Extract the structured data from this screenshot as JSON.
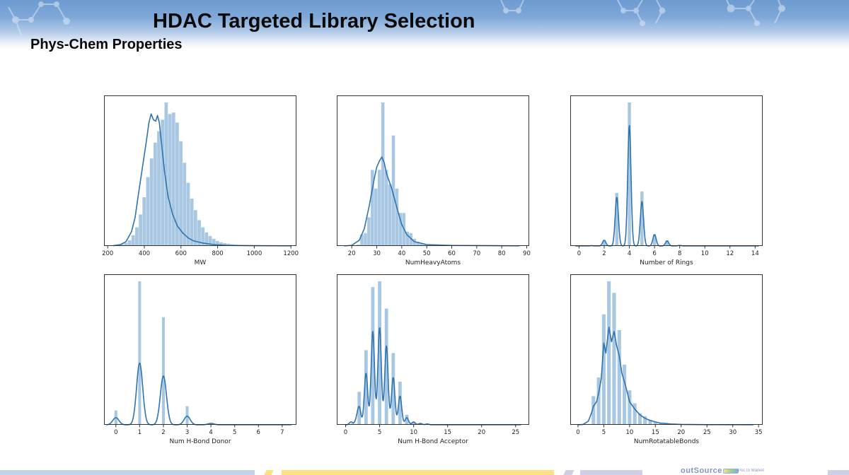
{
  "slide": {
    "title": "HDAC Targeted Library Selection",
    "subtitle": "Phys-Chem Properties",
    "footer_brand": "outSource",
    "footer_tagline": "Poc to Market"
  },
  "colors": {
    "bar_fill": "#a7c7e2",
    "kde_line": "#2f73b0",
    "frame": "#333333",
    "header_top": "#6d9bd0",
    "footer_blue": "#c2d4ea",
    "footer_yellow": "#fde084",
    "footer_lavender": "#cfcfe6"
  },
  "chart_data": [
    {
      "type": "bar",
      "subtype": "histogram+kde",
      "xlabel": "MW",
      "ylabel": "",
      "xlim": [
        180,
        1230
      ],
      "xticks": [
        200,
        400,
        600,
        800,
        1000,
        1200
      ],
      "bins": {
        "start": 230,
        "width": 20,
        "heights": [
          0.3,
          0.6,
          1.2,
          2.2,
          4.0,
          7.5,
          13,
          22,
          34,
          48,
          61,
          72,
          80,
          88,
          100,
          92,
          93,
          86,
          73,
          58,
          44,
          33,
          25,
          18,
          13,
          9.5,
          7,
          5,
          3.5,
          2.5,
          2,
          1.6,
          1.2,
          0.9,
          0.7,
          0.5,
          0.4,
          0.3,
          0.25,
          0.2,
          0.18,
          0.15,
          0.12,
          0.1,
          0.1,
          0.08,
          0.08,
          0.06,
          0.05
        ]
      },
      "kde": [
        [
          230,
          0.2
        ],
        [
          270,
          1
        ],
        [
          300,
          3
        ],
        [
          330,
          10
        ],
        [
          350,
          20
        ],
        [
          370,
          38
        ],
        [
          390,
          55
        ],
        [
          410,
          72
        ],
        [
          425,
          86
        ],
        [
          437,
          92
        ],
        [
          450,
          88
        ],
        [
          462,
          87
        ],
        [
          472,
          91
        ],
        [
          482,
          86
        ],
        [
          495,
          70
        ],
        [
          510,
          52
        ],
        [
          530,
          34
        ],
        [
          555,
          22
        ],
        [
          580,
          14
        ],
        [
          610,
          9
        ],
        [
          640,
          5.5
        ],
        [
          670,
          3.5
        ],
        [
          720,
          2
        ],
        [
          780,
          1
        ],
        [
          850,
          0.4
        ],
        [
          1000,
          0.2
        ],
        [
          1200,
          0.1
        ]
      ],
      "ymax": 100
    },
    {
      "type": "bar",
      "subtype": "histogram+kde",
      "xlabel": "NumHeavyAtoms",
      "ylabel": "",
      "xlim": [
        14,
        91
      ],
      "xticks": [
        20,
        30,
        40,
        50,
        60,
        70,
        80,
        90
      ],
      "bins": {
        "start": 22,
        "width": 1.4,
        "heights": [
          1,
          8,
          9,
          20,
          53,
          40,
          53,
          100,
          53,
          43,
          77,
          40,
          23,
          23,
          10,
          9,
          5,
          3,
          1.5,
          1,
          0.8,
          0.5,
          0.4,
          0.3,
          0.3,
          0.2,
          0.2,
          0.15,
          0.1,
          0.1
        ]
      },
      "kde": [
        [
          17,
          0
        ],
        [
          20,
          0.5
        ],
        [
          23,
          4
        ],
        [
          25,
          12
        ],
        [
          27,
          28
        ],
        [
          29,
          47
        ],
        [
          30,
          55
        ],
        [
          31,
          59
        ],
        [
          32,
          62
        ],
        [
          33,
          58
        ],
        [
          34,
          50
        ],
        [
          36,
          40
        ],
        [
          38,
          27
        ],
        [
          40,
          15
        ],
        [
          42,
          8
        ],
        [
          45,
          3
        ],
        [
          50,
          1
        ],
        [
          60,
          0.4
        ],
        [
          87,
          0.1
        ]
      ],
      "ymax": 100
    },
    {
      "type": "bar",
      "subtype": "histogram+kde",
      "xlabel": "Number of Rings",
      "ylabel": "",
      "xlim": [
        -0.7,
        14.6
      ],
      "xticks": [
        0,
        2,
        4,
        6,
        8,
        10,
        12,
        14
      ],
      "bars": [
        [
          1,
          0.3
        ],
        [
          2,
          4
        ],
        [
          3,
          37
        ],
        [
          4,
          100
        ],
        [
          5,
          38
        ],
        [
          6,
          8
        ],
        [
          7,
          4
        ],
        [
          8,
          0.5
        ]
      ],
      "bar_width": 0.25,
      "kde_peaks": [
        [
          1,
          0.2
        ],
        [
          2,
          4
        ],
        [
          3,
          34
        ],
        [
          4,
          84
        ],
        [
          5,
          31
        ],
        [
          6,
          8
        ],
        [
          7,
          3.5
        ],
        [
          8,
          0.4
        ]
      ],
      "kde_sigma": 0.13,
      "kde_range": [
        -0.3,
        14.3
      ],
      "ymax": 100
    },
    {
      "type": "bar",
      "subtype": "histogram+kde",
      "xlabel": "Num H-Bond Donor",
      "ylabel": "",
      "xlim": [
        -0.5,
        7.6
      ],
      "xticks": [
        0,
        1,
        2,
        3,
        4,
        5,
        6,
        7
      ],
      "bars": [
        [
          0,
          10
        ],
        [
          1,
          100
        ],
        [
          2,
          75
        ],
        [
          3,
          13
        ],
        [
          4,
          0.8
        ]
      ],
      "bar_width": 0.12,
      "kde_peaks": [
        [
          0,
          5
        ],
        [
          1,
          43
        ],
        [
          2,
          34
        ],
        [
          3,
          6
        ],
        [
          4,
          1
        ]
      ],
      "kde_sigma": 0.13,
      "kde_range": [
        -0.4,
        7.4
      ],
      "ymax": 100
    },
    {
      "type": "bar",
      "subtype": "histogram+kde",
      "xlabel": "Num H-Bond Acceptor",
      "ylabel": "",
      "xlim": [
        -1.3,
        27
      ],
      "xticks": [
        0,
        5,
        10,
        15,
        20,
        25
      ],
      "bars": [
        [
          1,
          1
        ],
        [
          2,
          23
        ],
        [
          3,
          52
        ],
        [
          4,
          96
        ],
        [
          5,
          100
        ],
        [
          6,
          81
        ],
        [
          7,
          50
        ],
        [
          8,
          30
        ],
        [
          9,
          7
        ],
        [
          10,
          2
        ],
        [
          11,
          0.8
        ],
        [
          12,
          0.4
        ],
        [
          13,
          0.2
        ]
      ],
      "bar_width": 0.5,
      "kde_peaks": [
        [
          0.8,
          2
        ],
        [
          1.6,
          3
        ],
        [
          2,
          12
        ],
        [
          3,
          36
        ],
        [
          4,
          65
        ],
        [
          5,
          68
        ],
        [
          6,
          55
        ],
        [
          7,
          33
        ],
        [
          8,
          20
        ],
        [
          9,
          5
        ],
        [
          10,
          2
        ],
        [
          11,
          1
        ],
        [
          12,
          0.6
        ]
      ],
      "kde_sigma": 0.25,
      "kde_range": [
        0,
        25.8
      ],
      "ymax": 100
    },
    {
      "type": "bar",
      "subtype": "histogram+kde",
      "xlabel": "NumRotatableBonds",
      "ylabel": "",
      "xlim": [
        -1.5,
        35.8
      ],
      "xticks": [
        0,
        5,
        10,
        15,
        20,
        25,
        30,
        35
      ],
      "bars": [
        [
          3,
          20
        ],
        [
          4,
          33
        ],
        [
          5,
          77
        ],
        [
          6,
          100
        ],
        [
          7,
          92
        ],
        [
          8,
          66
        ],
        [
          9,
          42
        ],
        [
          10,
          24
        ],
        [
          11,
          15
        ],
        [
          12,
          8
        ],
        [
          13,
          6
        ],
        [
          14,
          3.5
        ],
        [
          15,
          2
        ],
        [
          16,
          1
        ],
        [
          17,
          0.7
        ],
        [
          18,
          0.5
        ],
        [
          20,
          0.4
        ]
      ],
      "bar_width": 0.7,
      "kde": [
        [
          0,
          0
        ],
        [
          1,
          0.3
        ],
        [
          2,
          2.5
        ],
        [
          2.6,
          8
        ],
        [
          3,
          13
        ],
        [
          3.6,
          16
        ],
        [
          4,
          22
        ],
        [
          4.5,
          32
        ],
        [
          5,
          57
        ],
        [
          5.4,
          50
        ],
        [
          6,
          68
        ],
        [
          6.5,
          58
        ],
        [
          7,
          65
        ],
        [
          7.5,
          55
        ],
        [
          8,
          48
        ],
        [
          8.5,
          36
        ],
        [
          9,
          30
        ],
        [
          9.6,
          22
        ],
        [
          10,
          16
        ],
        [
          11,
          11
        ],
        [
          12,
          7
        ],
        [
          13,
          4.5
        ],
        [
          14,
          3
        ],
        [
          15,
          2
        ],
        [
          16,
          1.2
        ],
        [
          18,
          0.6
        ],
        [
          20,
          0.3
        ],
        [
          25,
          0.1
        ],
        [
          34,
          0
        ]
      ],
      "ymax": 100
    }
  ]
}
